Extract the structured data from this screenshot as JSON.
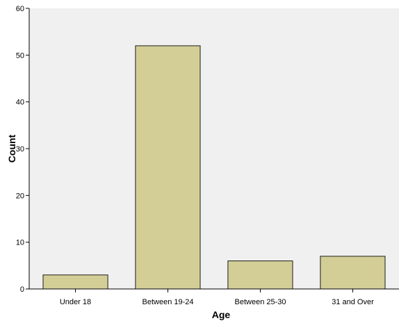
{
  "chart_data": {
    "type": "bar",
    "categories": [
      "Under 18",
      "Between 19-24",
      "Between 25-30",
      "31 and Over"
    ],
    "values": [
      3,
      52,
      6,
      7
    ],
    "xlabel": "Age",
    "ylabel": "Count",
    "ylim": [
      0,
      60
    ],
    "yticks": [
      0,
      10,
      20,
      30,
      40,
      50,
      60
    ],
    "grid": false,
    "colors": {
      "bar_fill": "#d3ce96",
      "bar_stroke": "#1a1a1a",
      "plot_background": "#f0f0f0",
      "axis": "#000000"
    }
  }
}
